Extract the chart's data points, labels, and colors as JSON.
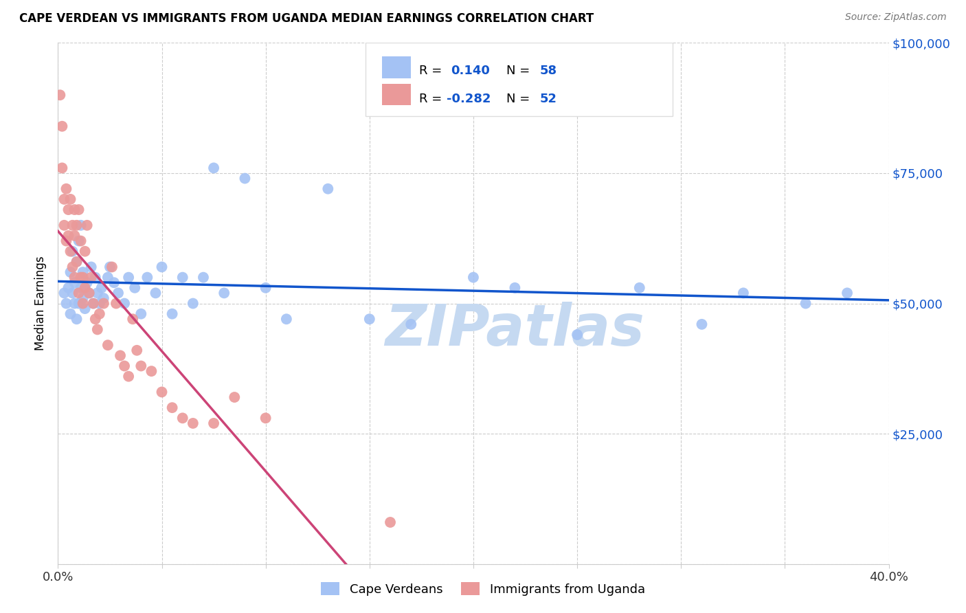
{
  "title": "CAPE VERDEAN VS IMMIGRANTS FROM UGANDA MEDIAN EARNINGS CORRELATION CHART",
  "source": "Source: ZipAtlas.com",
  "ylabel": "Median Earnings",
  "xlim": [
    0.0,
    0.4
  ],
  "ylim": [
    0,
    100000
  ],
  "yticks": [
    0,
    25000,
    50000,
    75000,
    100000
  ],
  "ytick_labels": [
    "",
    "$25,000",
    "$50,000",
    "$75,000",
    "$100,000"
  ],
  "xticks": [
    0.0,
    0.05,
    0.1,
    0.15,
    0.2,
    0.25,
    0.3,
    0.35,
    0.4
  ],
  "xtick_labels": [
    "0.0%",
    "",
    "",
    "",
    "",
    "",
    "",
    "",
    "40.0%"
  ],
  "R_blue": 0.14,
  "N_blue": 58,
  "R_pink": -0.282,
  "N_pink": 52,
  "blue_color": "#a4c2f4",
  "pink_color": "#ea9999",
  "blue_line_color": "#1155cc",
  "pink_line_color": "#cc4477",
  "dashed_line_color": "#ccaaaa",
  "watermark": "ZIPatlas",
  "watermark_color": "#c5d9f1",
  "legend_label_blue": "Cape Verdeans",
  "legend_label_pink": "Immigrants from Uganda",
  "title_fontsize": 12,
  "blue_scatter_x": [
    0.003,
    0.004,
    0.005,
    0.006,
    0.006,
    0.007,
    0.007,
    0.008,
    0.008,
    0.009,
    0.009,
    0.01,
    0.01,
    0.011,
    0.011,
    0.012,
    0.012,
    0.013,
    0.014,
    0.015,
    0.016,
    0.017,
    0.018,
    0.019,
    0.02,
    0.021,
    0.022,
    0.024,
    0.025,
    0.027,
    0.029,
    0.032,
    0.034,
    0.037,
    0.04,
    0.043,
    0.047,
    0.05,
    0.055,
    0.06,
    0.065,
    0.07,
    0.075,
    0.08,
    0.09,
    0.1,
    0.11,
    0.13,
    0.15,
    0.17,
    0.2,
    0.22,
    0.25,
    0.28,
    0.31,
    0.33,
    0.36,
    0.38
  ],
  "blue_scatter_y": [
    52000,
    50000,
    53000,
    56000,
    48000,
    52000,
    60000,
    54000,
    50000,
    58000,
    47000,
    62000,
    50000,
    65000,
    53000,
    56000,
    51000,
    49000,
    54000,
    52000,
    57000,
    50000,
    55000,
    52000,
    50000,
    53000,
    51000,
    55000,
    57000,
    54000,
    52000,
    50000,
    55000,
    53000,
    48000,
    55000,
    52000,
    57000,
    48000,
    55000,
    50000,
    55000,
    76000,
    52000,
    74000,
    53000,
    47000,
    72000,
    47000,
    46000,
    55000,
    53000,
    44000,
    53000,
    46000,
    52000,
    50000,
    52000
  ],
  "pink_scatter_x": [
    0.001,
    0.002,
    0.002,
    0.003,
    0.003,
    0.004,
    0.004,
    0.005,
    0.005,
    0.006,
    0.006,
    0.007,
    0.007,
    0.008,
    0.008,
    0.008,
    0.009,
    0.009,
    0.01,
    0.01,
    0.011,
    0.011,
    0.012,
    0.012,
    0.013,
    0.013,
    0.014,
    0.015,
    0.016,
    0.017,
    0.018,
    0.019,
    0.02,
    0.022,
    0.024,
    0.026,
    0.028,
    0.03,
    0.032,
    0.034,
    0.036,
    0.038,
    0.04,
    0.045,
    0.05,
    0.055,
    0.06,
    0.065,
    0.075,
    0.085,
    0.1,
    0.16
  ],
  "pink_scatter_y": [
    90000,
    84000,
    76000,
    70000,
    65000,
    72000,
    62000,
    68000,
    63000,
    70000,
    60000,
    65000,
    57000,
    68000,
    63000,
    55000,
    65000,
    58000,
    68000,
    52000,
    62000,
    55000,
    55000,
    50000,
    60000,
    53000,
    65000,
    52000,
    55000,
    50000,
    47000,
    45000,
    48000,
    50000,
    42000,
    57000,
    50000,
    40000,
    38000,
    36000,
    47000,
    41000,
    38000,
    37000,
    33000,
    30000,
    28000,
    27000,
    27000,
    32000,
    28000,
    8000
  ]
}
